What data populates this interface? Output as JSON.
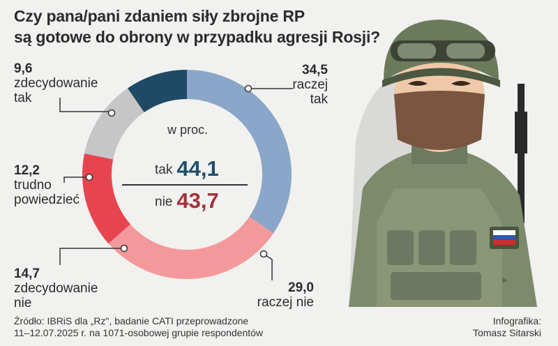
{
  "title_line1": "Czy pana/pani zdaniem siły zbrojne RP",
  "title_line2": "są gotowe do obrony w przypadku agresji Rosji?",
  "unit": "w proc.",
  "summary": {
    "yes_label": "tak",
    "yes_value": "44,1",
    "no_label": "nie",
    "no_value": "43,7"
  },
  "chart_data": {
    "type": "pie",
    "donut": true,
    "title": "Czy pana/pani zdaniem siły zbrojne RP są gotowe do obrony w przypadku agresji Rosji?",
    "unit": "w proc.",
    "slices": [
      {
        "label": "raczej tak",
        "value": 34.5,
        "display": "34,5",
        "color": "#8aa7c9"
      },
      {
        "label": "raczej nie",
        "value": 29.0,
        "display": "29,0",
        "color": "#f4999b"
      },
      {
        "label": "zdecydowanie nie",
        "value": 14.7,
        "display": "14,7",
        "color": "#e84450"
      },
      {
        "label": "trudno powiedzieć",
        "value": 12.2,
        "display": "12,2",
        "color": "#c6c6c6"
      },
      {
        "label": "zdecydowanie tak",
        "value": 9.6,
        "display": "9,6",
        "color": "#1f4a66"
      }
    ]
  },
  "labels": {
    "raczej_tak": {
      "value": "34,5",
      "line1": "raczej",
      "line2": "tak"
    },
    "raczej_nie": {
      "value": "29,0",
      "line1": "raczej nie"
    },
    "zdec_nie": {
      "value": "14,7",
      "line1": "zdecydowanie",
      "line2": "nie"
    },
    "trudno": {
      "value": "12,2",
      "line1": "trudno",
      "line2": "powiedzieć"
    },
    "zdec_tak": {
      "value": "9,6",
      "line1": "zdecydowanie",
      "line2": "tak"
    }
  },
  "source_line1": "Źródło: IBRiS dla „Rz\", badanie CATI przeprowadzone",
  "source_line2": "11–12.07.2025 r. na 1071-osobowej grupie respondentów",
  "credit_line1": "Infografika:",
  "credit_line2": "Tomasz Sitarski"
}
